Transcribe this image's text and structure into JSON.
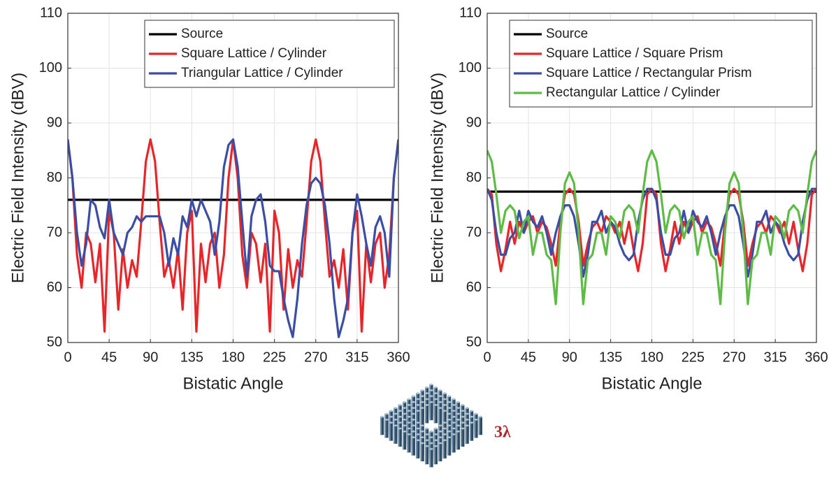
{
  "chart_data": [
    {
      "type": "line",
      "xlabel": "Bistatic Angle",
      "ylabel": "Electric Field Intensity (dBV)",
      "xlim": [
        0,
        360
      ],
      "ylim": [
        50,
        110
      ],
      "xticks": [
        0,
        45,
        90,
        135,
        180,
        225,
        270,
        315,
        360
      ],
      "yticks": [
        50,
        60,
        70,
        80,
        90,
        100,
        110
      ],
      "grid": true,
      "legend": "upper right",
      "x": [
        0,
        5,
        10,
        15,
        20,
        25,
        30,
        35,
        40,
        45,
        50,
        55,
        60,
        65,
        70,
        75,
        80,
        85,
        90,
        95,
        100,
        105,
        110,
        115,
        120,
        125,
        130,
        135,
        140,
        145,
        150,
        155,
        160,
        165,
        170,
        175,
        180,
        185,
        190,
        195,
        200,
        205,
        210,
        215,
        220,
        225,
        230,
        235,
        240,
        245,
        250,
        255,
        260,
        265,
        270,
        275,
        280,
        285,
        290,
        295,
        300,
        305,
        310,
        315,
        320,
        325,
        330,
        335,
        340,
        345,
        350,
        355,
        360
      ],
      "series": [
        {
          "name": "Source",
          "color": "#000000",
          "x": [
            0,
            360
          ],
          "values": [
            76,
            76
          ]
        },
        {
          "name": "Square Lattice / Cylinder",
          "color": "#e8262a",
          "values": [
            87,
            80,
            66,
            60,
            70,
            68,
            61,
            68,
            52,
            74,
            70,
            56,
            67,
            60,
            65,
            62,
            72,
            83,
            87,
            83,
            72,
            62,
            65,
            60,
            67,
            56,
            70,
            74,
            52,
            68,
            61,
            68,
            70,
            60,
            66,
            80,
            87,
            80,
            66,
            60,
            70,
            68,
            61,
            68,
            52,
            74,
            70,
            56,
            67,
            60,
            65,
            62,
            72,
            83,
            87,
            83,
            72,
            62,
            65,
            60,
            67,
            56,
            70,
            74,
            52,
            68,
            61,
            68,
            70,
            60,
            66,
            80,
            87
          ]
        },
        {
          "name": "Triangular Lattice / Cylinder",
          "color": "#3a4ea5",
          "values": [
            87,
            80,
            70,
            64,
            68,
            76,
            75,
            71,
            69,
            76,
            70,
            68,
            66,
            70,
            71,
            73,
            72,
            73,
            73,
            73,
            73,
            70,
            64,
            69,
            66,
            73,
            71,
            76,
            73,
            76,
            74,
            72,
            66,
            72,
            82,
            86,
            87,
            82,
            72,
            62,
            73,
            76,
            77,
            72,
            64,
            63,
            63,
            58,
            54,
            51,
            58,
            68,
            75,
            79,
            80,
            79,
            75,
            68,
            58,
            51,
            54,
            58,
            70,
            77,
            73,
            68,
            64,
            71,
            73,
            70,
            62,
            80,
            87
          ]
        }
      ]
    },
    {
      "type": "line",
      "xlabel": "Bistatic Angle",
      "ylabel": "Electric Field Intensity (dBV)",
      "xlim": [
        0,
        360
      ],
      "ylim": [
        50,
        110
      ],
      "xticks": [
        0,
        45,
        90,
        135,
        180,
        225,
        270,
        315,
        360
      ],
      "yticks": [
        50,
        60,
        70,
        80,
        90,
        100,
        110
      ],
      "grid": true,
      "legend": "upper right",
      "x": [
        0,
        5,
        10,
        15,
        20,
        25,
        30,
        35,
        40,
        45,
        50,
        55,
        60,
        65,
        70,
        75,
        80,
        85,
        90,
        95,
        100,
        105,
        110,
        115,
        120,
        125,
        130,
        135,
        140,
        145,
        150,
        155,
        160,
        165,
        170,
        175,
        180,
        185,
        190,
        195,
        200,
        205,
        210,
        215,
        220,
        225,
        230,
        235,
        240,
        245,
        250,
        255,
        260,
        265,
        270,
        275,
        280,
        285,
        290,
        295,
        300,
        305,
        310,
        315,
        320,
        325,
        330,
        335,
        340,
        345,
        350,
        355,
        360
      ],
      "series": [
        {
          "name": "Source",
          "color": "#000000",
          "x": [
            0,
            360
          ],
          "values": [
            77.5,
            77.5
          ]
        },
        {
          "name": "Square Lattice / Square Prism",
          "color": "#e8262a",
          "values": [
            78,
            77,
            68,
            63,
            67,
            72,
            68,
            72,
            70,
            72,
            73,
            70,
            72,
            71,
            68,
            64,
            72,
            77,
            78,
            77,
            72,
            64,
            68,
            71,
            72,
            70,
            73,
            72,
            70,
            72,
            68,
            72,
            67,
            63,
            68,
            77,
            78,
            77,
            68,
            63,
            67,
            72,
            68,
            72,
            70,
            72,
            73,
            70,
            72,
            71,
            68,
            64,
            72,
            77,
            78,
            77,
            72,
            64,
            68,
            71,
            72,
            70,
            73,
            72,
            70,
            72,
            68,
            72,
            67,
            63,
            68,
            77,
            78
          ]
        },
        {
          "name": "Square Lattice / Rectangular Prism",
          "color": "#3a4ea5",
          "values": [
            78,
            76,
            70,
            66,
            66,
            69,
            70,
            74,
            70,
            74,
            72,
            71,
            73,
            70,
            66,
            70,
            73,
            75,
            75,
            73,
            68,
            62,
            66,
            72,
            72,
            74,
            70,
            72,
            71,
            68,
            66,
            65,
            66,
            72,
            76,
            78,
            78,
            76,
            70,
            66,
            66,
            69,
            70,
            74,
            70,
            74,
            72,
            71,
            73,
            70,
            66,
            70,
            73,
            75,
            75,
            73,
            68,
            62,
            66,
            72,
            72,
            74,
            70,
            72,
            71,
            68,
            66,
            65,
            66,
            72,
            76,
            78,
            78
          ]
        },
        {
          "name": "Rectangular Lattice / Cylinder",
          "color": "#5dbb46",
          "values": [
            85,
            83,
            77,
            70,
            74,
            75,
            74,
            69,
            72,
            73,
            66,
            70,
            70,
            66,
            65,
            57,
            70,
            79,
            81,
            79,
            70,
            57,
            65,
            66,
            70,
            70,
            66,
            73,
            72,
            69,
            74,
            75,
            74,
            70,
            77,
            83,
            85,
            83,
            77,
            70,
            74,
            75,
            74,
            69,
            72,
            73,
            66,
            70,
            70,
            66,
            65,
            57,
            70,
            79,
            81,
            79,
            70,
            57,
            65,
            66,
            70,
            70,
            66,
            73,
            72,
            69,
            74,
            75,
            74,
            70,
            77,
            83,
            85
          ]
        }
      ]
    }
  ],
  "illustration_label": "3λ"
}
